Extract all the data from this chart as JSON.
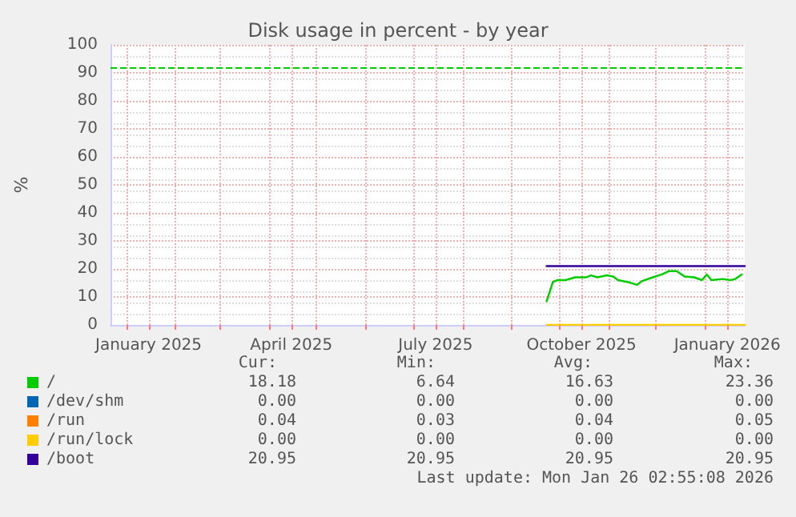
{
  "chart_data": {
    "type": "line",
    "title": "Disk usage in percent - by year",
    "ylabel": "%",
    "xlim": [
      "2024-12-22",
      "2026-01-26"
    ],
    "xticks": [
      {
        "value": "2025-01-01",
        "label": null
      },
      {
        "value": "2025-01-15",
        "label": "January 2025"
      },
      {
        "value": "2025-02-01",
        "label": null
      },
      {
        "value": "2025-03-01",
        "label": null
      },
      {
        "value": "2025-04-01",
        "label": null
      },
      {
        "value": "2025-04-15",
        "label": "April 2025"
      },
      {
        "value": "2025-05-01",
        "label": null
      },
      {
        "value": "2025-06-01",
        "label": null
      },
      {
        "value": "2025-07-01",
        "label": null
      },
      {
        "value": "2025-07-15",
        "label": "July 2025"
      },
      {
        "value": "2025-08-01",
        "label": null
      },
      {
        "value": "2025-09-01",
        "label": null
      },
      {
        "value": "2025-10-01",
        "label": null
      },
      {
        "value": "2025-10-15",
        "label": "October 2025"
      },
      {
        "value": "2025-11-01",
        "label": null
      },
      {
        "value": "2025-12-01",
        "label": null
      },
      {
        "value": "2026-01-01",
        "label": null
      },
      {
        "value": "2026-01-15",
        "label": "January 2026"
      }
    ],
    "ylim": [
      0,
      100
    ],
    "yticks": [
      0,
      10,
      20,
      30,
      40,
      50,
      60,
      70,
      80,
      90,
      100
    ],
    "grid": true,
    "legend": "bottom left",
    "marker": "none",
    "line_style": "solid",
    "series": [
      {
        "name": "/",
        "color": "#00cc00",
        "x": [
          "2025-09-23",
          "2025-09-27",
          "2025-09-30",
          "2025-10-05",
          "2025-10-11",
          "2025-10-18",
          "2025-10-21",
          "2025-10-25",
          "2025-10-31",
          "2025-11-04",
          "2025-11-07",
          "2025-11-14",
          "2025-11-19",
          "2025-11-22",
          "2025-11-29",
          "2025-12-05",
          "2025-12-09",
          "2025-12-14",
          "2025-12-19",
          "2025-12-25",
          "2025-12-30",
          "2026-01-02",
          "2026-01-05",
          "2026-01-12",
          "2026-01-17",
          "2026-01-20",
          "2026-01-24"
        ],
        "values": [
          8.4,
          15.4,
          16,
          16,
          17,
          17,
          17.7,
          17,
          17.7,
          17.3,
          16,
          15.2,
          14.3,
          15.6,
          17,
          18.1,
          19.2,
          19.2,
          17.3,
          17,
          16,
          18,
          16,
          16.4,
          16,
          16.4,
          18
        ]
      },
      {
        "name": "/dev/shm",
        "color": "#0066b3"
      },
      {
        "name": "/run",
        "color": "#ff8000"
      },
      {
        "name": "/run/lock",
        "color": "#ffcc00",
        "x": [
          "2025-09-23",
          "2026-01-26"
        ],
        "values": [
          0,
          0
        ]
      },
      {
        "name": "/boot",
        "color": "#330099",
        "x": [
          "2025-09-23",
          "2026-01-26"
        ],
        "values": [
          21,
          21
        ]
      }
    ],
    "ref_lines": [
      {
        "axis": "y",
        "value": 92,
        "label": null,
        "color": "#00cc00",
        "line_style": "dashed"
      }
    ],
    "annotations": [
      "Cur:",
      "Min:",
      "Avg:",
      "Max:",
      "18.18",
      "6.64",
      "16.63",
      "23.36",
      "0.00",
      "0.00",
      "0.00",
      "0.00",
      "0.04",
      "0.03",
      "0.04",
      "0.05",
      "0.00",
      "0.00",
      "0.00",
      "0.00",
      "20.95",
      "20.95",
      "20.95",
      "20.95",
      "Last update: Mon Jan 26 02:55:08 2026"
    ]
  }
}
